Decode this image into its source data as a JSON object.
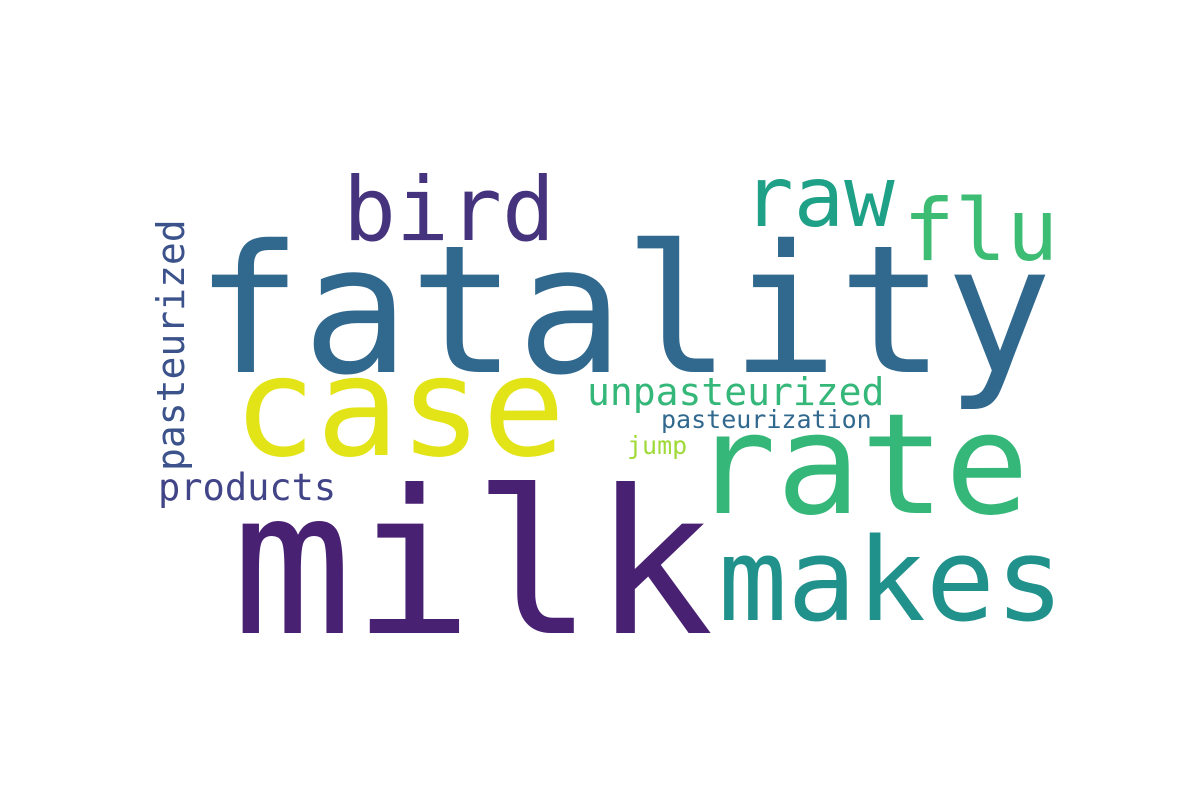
{
  "chart_data": {
    "type": "wordcloud",
    "words": [
      {
        "text": "fatality",
        "color": "#31688e"
      },
      {
        "text": "milk",
        "color": "#482173"
      },
      {
        "text": "case",
        "color": "#e2e418"
      },
      {
        "text": "rate",
        "color": "#35b779"
      },
      {
        "text": "makes",
        "color": "#21918c"
      },
      {
        "text": "bird",
        "color": "#46337e"
      },
      {
        "text": "raw",
        "color": "#1fa187"
      },
      {
        "text": "flu",
        "color": "#3dbc74"
      },
      {
        "text": "unpasteurized",
        "color": "#35b779"
      },
      {
        "text": "pasteurization",
        "color": "#31688e"
      },
      {
        "text": "jump",
        "color": "#a0da39"
      },
      {
        "text": "products",
        "color": "#414487"
      },
      {
        "text": "pasteurized",
        "color": "#3b528b"
      }
    ]
  }
}
